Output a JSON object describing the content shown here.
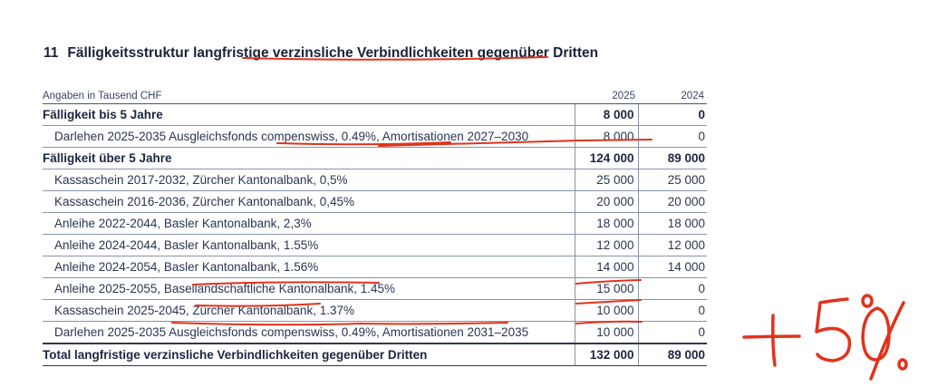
{
  "heading": {
    "number": "11",
    "title": "Fälligkeitsstruktur langfristige verzinsliche Verbindlichkeiten gegenüber Dritten"
  },
  "table": {
    "unit_label": "Angaben in Tausend CHF",
    "col_2025": "2025",
    "col_2024": "2024",
    "rows": [
      {
        "label": "Fälligkeit bis 5 Jahre",
        "v2025": "8 000",
        "v2024": "0"
      },
      {
        "label": "Darlehen 2025-2035 Ausgleichsfonds compenswiss, 0.49%, Amortisationen 2027–2030",
        "v2025": "8 000",
        "v2024": "0"
      },
      {
        "label": "Fälligkeit über 5 Jahre",
        "v2025": "124 000",
        "v2024": "89 000"
      },
      {
        "label": "Kassaschein 2017-2032, Zürcher Kantonalbank, 0,5%",
        "v2025": "25 000",
        "v2024": "25 000"
      },
      {
        "label": "Kassaschein 2016-2036, Zürcher Kantonalbank, 0,45%",
        "v2025": "20 000",
        "v2024": "20 000"
      },
      {
        "label": "Anleihe 2022-2044, Basler Kantonalbank, 2,3%",
        "v2025": "18 000",
        "v2024": "18 000"
      },
      {
        "label": "Anleihe 2024-2044, Basler Kantonalbank, 1.55%",
        "v2025": "12 000",
        "v2024": "12 000"
      },
      {
        "label": "Anleihe 2024-2054, Basler Kantonalbank, 1.56%",
        "v2025": "14 000",
        "v2024": "14 000"
      },
      {
        "label": "Anleihe 2025-2055, Basellandschaftliche Kantonalbank, 1.45%",
        "v2025": "15 000",
        "v2024": "0"
      },
      {
        "label": "Kassaschein 2025-2045, Zürcher Kantonalbank, 1.37%",
        "v2025": "10 000",
        "v2024": "0"
      },
      {
        "label": "Darlehen 2025-2035 Ausgleichsfonds compenswiss, 0.49%, Amortisationen 2031–2035",
        "v2025": "10 000",
        "v2024": "0"
      },
      {
        "label": "Total langfristige verzinsliche Verbindlichkeiten gegenüber Dritten",
        "v2025": "132 000",
        "v2024": "89 000"
      }
    ]
  },
  "annotation": {
    "handwritten_text": "+50%",
    "ink_color": "#e2321b"
  }
}
